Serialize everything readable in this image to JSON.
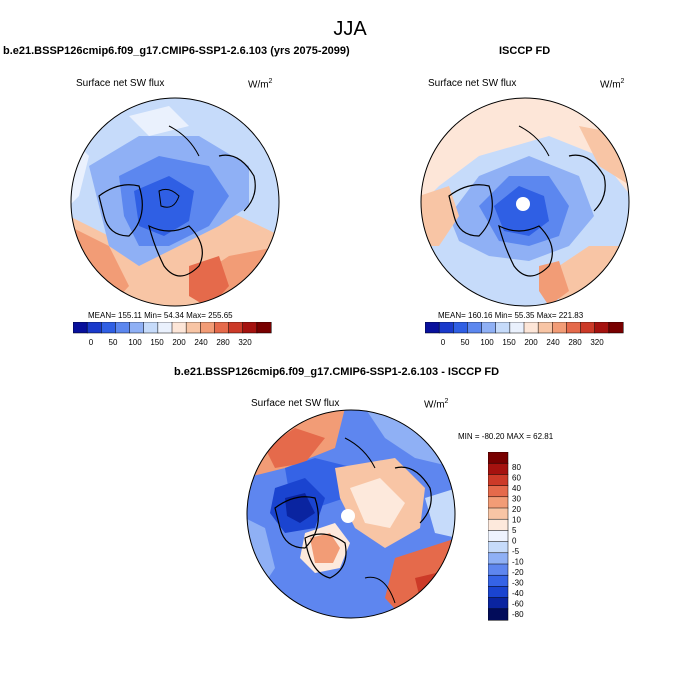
{
  "season": "JJA",
  "colors": {
    "abs_scale": [
      "#08109c",
      "#1a3acb",
      "#2f5fe4",
      "#5c87ef",
      "#8fb0f5",
      "#c6dbfa",
      "#eaf1fd",
      "#fde6d8",
      "#f8c5a5",
      "#f29c76",
      "#e56a4b",
      "#cc3a28",
      "#a5120f",
      "#780000"
    ],
    "diff_scale": [
      "#020c5a",
      "#0a24a0",
      "#1a44d0",
      "#3563e6",
      "#5e86ef",
      "#8fb0f5",
      "#c6dbfa",
      "#eef3fe",
      "#fde9dc",
      "#f8c5a5",
      "#f29c76",
      "#e56a4b",
      "#cc3a28",
      "#a5120f",
      "#780000"
    ]
  },
  "panels": [
    {
      "title": "b.e21.BSSP126cmip6.f09_g17.CMIP6-SSP1-2.6.103 (yrs 2075-2099)",
      "variable": "Surface net SW flux",
      "units": "W/m",
      "units_exp": "2",
      "stats": "MEAN= 155.11  Min=  54.34  Max= 255.65",
      "colorbar_labels": [
        "0",
        "50",
        "100",
        "150",
        "200",
        "240",
        "280",
        "320"
      ]
    },
    {
      "title": "ISCCP FD",
      "variable": "Surface net SW flux",
      "units": "W/m",
      "units_exp": "2",
      "stats": "MEAN= 160.16  Min=  55.35  Max= 221.83",
      "colorbar_labels": [
        "0",
        "50",
        "100",
        "150",
        "200",
        "240",
        "280",
        "320"
      ]
    },
    {
      "title": "b.e21.BSSP126cmip6.f09_g17.CMIP6-SSP1-2.6.103 - ISCCP FD",
      "variable": "Surface net SW flux",
      "units": "W/m",
      "units_exp": "2",
      "stats": "MIN = -80.20 MAX =  62.81",
      "colorbar_labels": [
        "80",
        "60",
        "40",
        "30",
        "20",
        "10",
        "5",
        "0",
        "-5",
        "-10",
        "-20",
        "-30",
        "-40",
        "-60",
        "-80"
      ]
    }
  ]
}
